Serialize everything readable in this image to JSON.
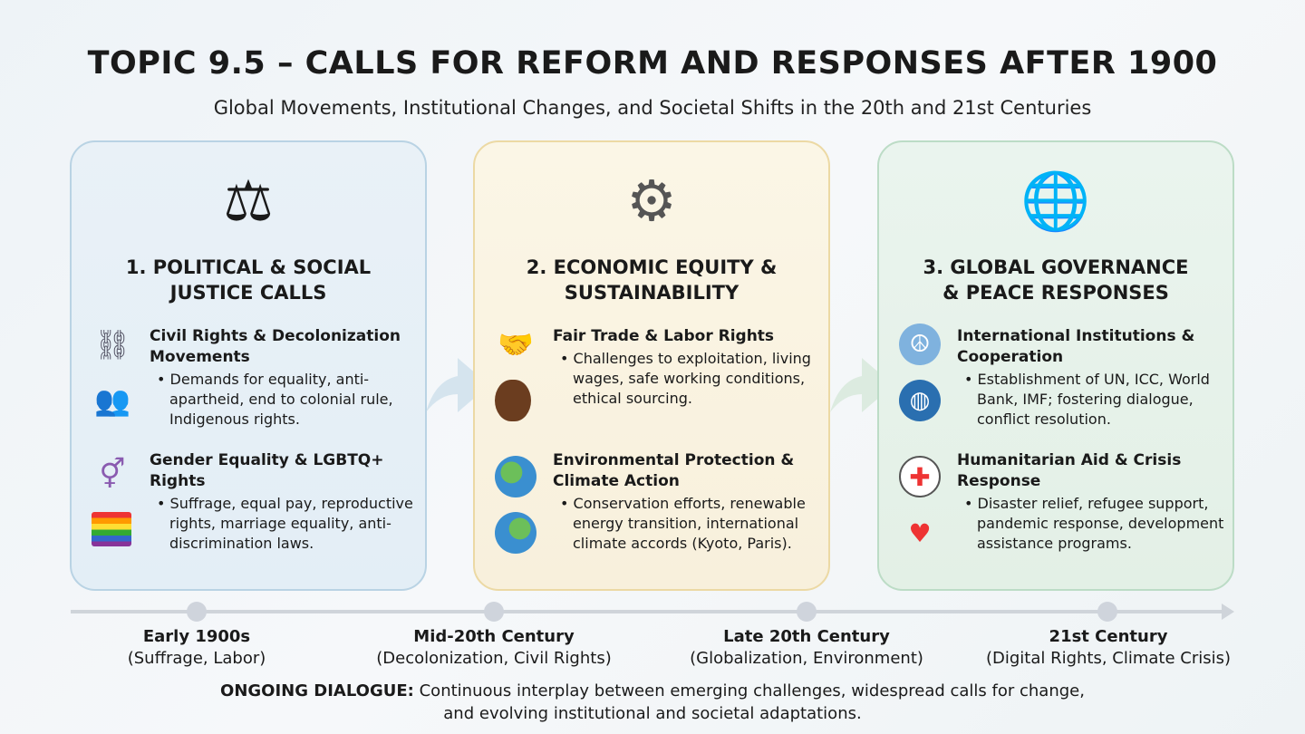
{
  "title": "TOPIC 9.5 – CALLS FOR REFORM AND RESPONSES AFTER 1900",
  "subtitle": "Global Movements, Institutional Changes, and Societal Shifts in the 20th and 21st Centuries",
  "panels": [
    {
      "title_line1": "1. POLITICAL & SOCIAL",
      "title_line2": "JUSTICE CALLS",
      "icon": "fist-scales-icon",
      "color": "#b9d3e4",
      "items": [
        {
          "heading": "Civil Rights & Decolonization Movements",
          "bullet": "Demands for equality, anti-apartheid, end to colonial rule, Indigenous rights.",
          "icons": [
            "broken-chain-icon",
            "crowd-icon"
          ]
        },
        {
          "heading": "Gender Equality & LGBTQ+ Rights",
          "bullet": "Suffrage, equal pay, reproductive rights, marriage equality, anti-discrimination laws.",
          "icons": [
            "gender-symbol-icon",
            "rainbow-flag-icon"
          ]
        }
      ]
    },
    {
      "title_line1": "2. ECONOMIC EQUITY &",
      "title_line2": "SUSTAINABILITY",
      "icon": "gear-plant-hand-icon",
      "color": "#ecd9a4",
      "items": [
        {
          "heading": "Fair Trade & Labor Rights",
          "bullet": "Challenges to exploitation, living wages, safe working conditions, ethical sourcing.",
          "icons": [
            "handshake-icon",
            "coffee-bean-icon"
          ]
        },
        {
          "heading": "Environmental Protection & Climate Action",
          "bullet": "Conservation efforts, renewable energy transition, international climate accords (Kyoto, Paris).",
          "icons": [
            "earth-icon",
            "earth-thermometer-icon"
          ]
        }
      ]
    },
    {
      "title_line1": "3. GLOBAL GOVERNANCE",
      "title_line2": "& PEACE RESPONSES",
      "icon": "globe-dove-institution-icon",
      "color": "#bcdcc6",
      "items": [
        {
          "heading": "International Institutions & Cooperation",
          "bullet": "Establishment of UN, ICC, World Bank, IMF; fostering dialogue, conflict resolution.",
          "icons": [
            "un-emblem-icon",
            "globe-laurel-icon"
          ]
        },
        {
          "heading": "Humanitarian Aid & Crisis Response",
          "bullet": "Disaster relief, refugee support, pandemic response, development assistance programs.",
          "icons": [
            "red-cross-icon",
            "heart-hand-icon"
          ]
        }
      ]
    }
  ],
  "timeline": [
    {
      "period": "Early 1900s",
      "detail": "(Suffrage, Labor)"
    },
    {
      "period": "Mid-20th Century",
      "detail": "(Decolonization, Civil Rights)"
    },
    {
      "period": "Late 20th Century",
      "detail": "(Globalization, Environment)"
    },
    {
      "period": "21st Century",
      "detail": "(Digital Rights, Climate Crisis)"
    }
  ],
  "footer": {
    "label": "ONGOING DIALOGUE:",
    "line1": "Continuous interplay between emerging challenges, widespread calls for change,",
    "line2": "and evolving institutional and societal adaptations."
  }
}
